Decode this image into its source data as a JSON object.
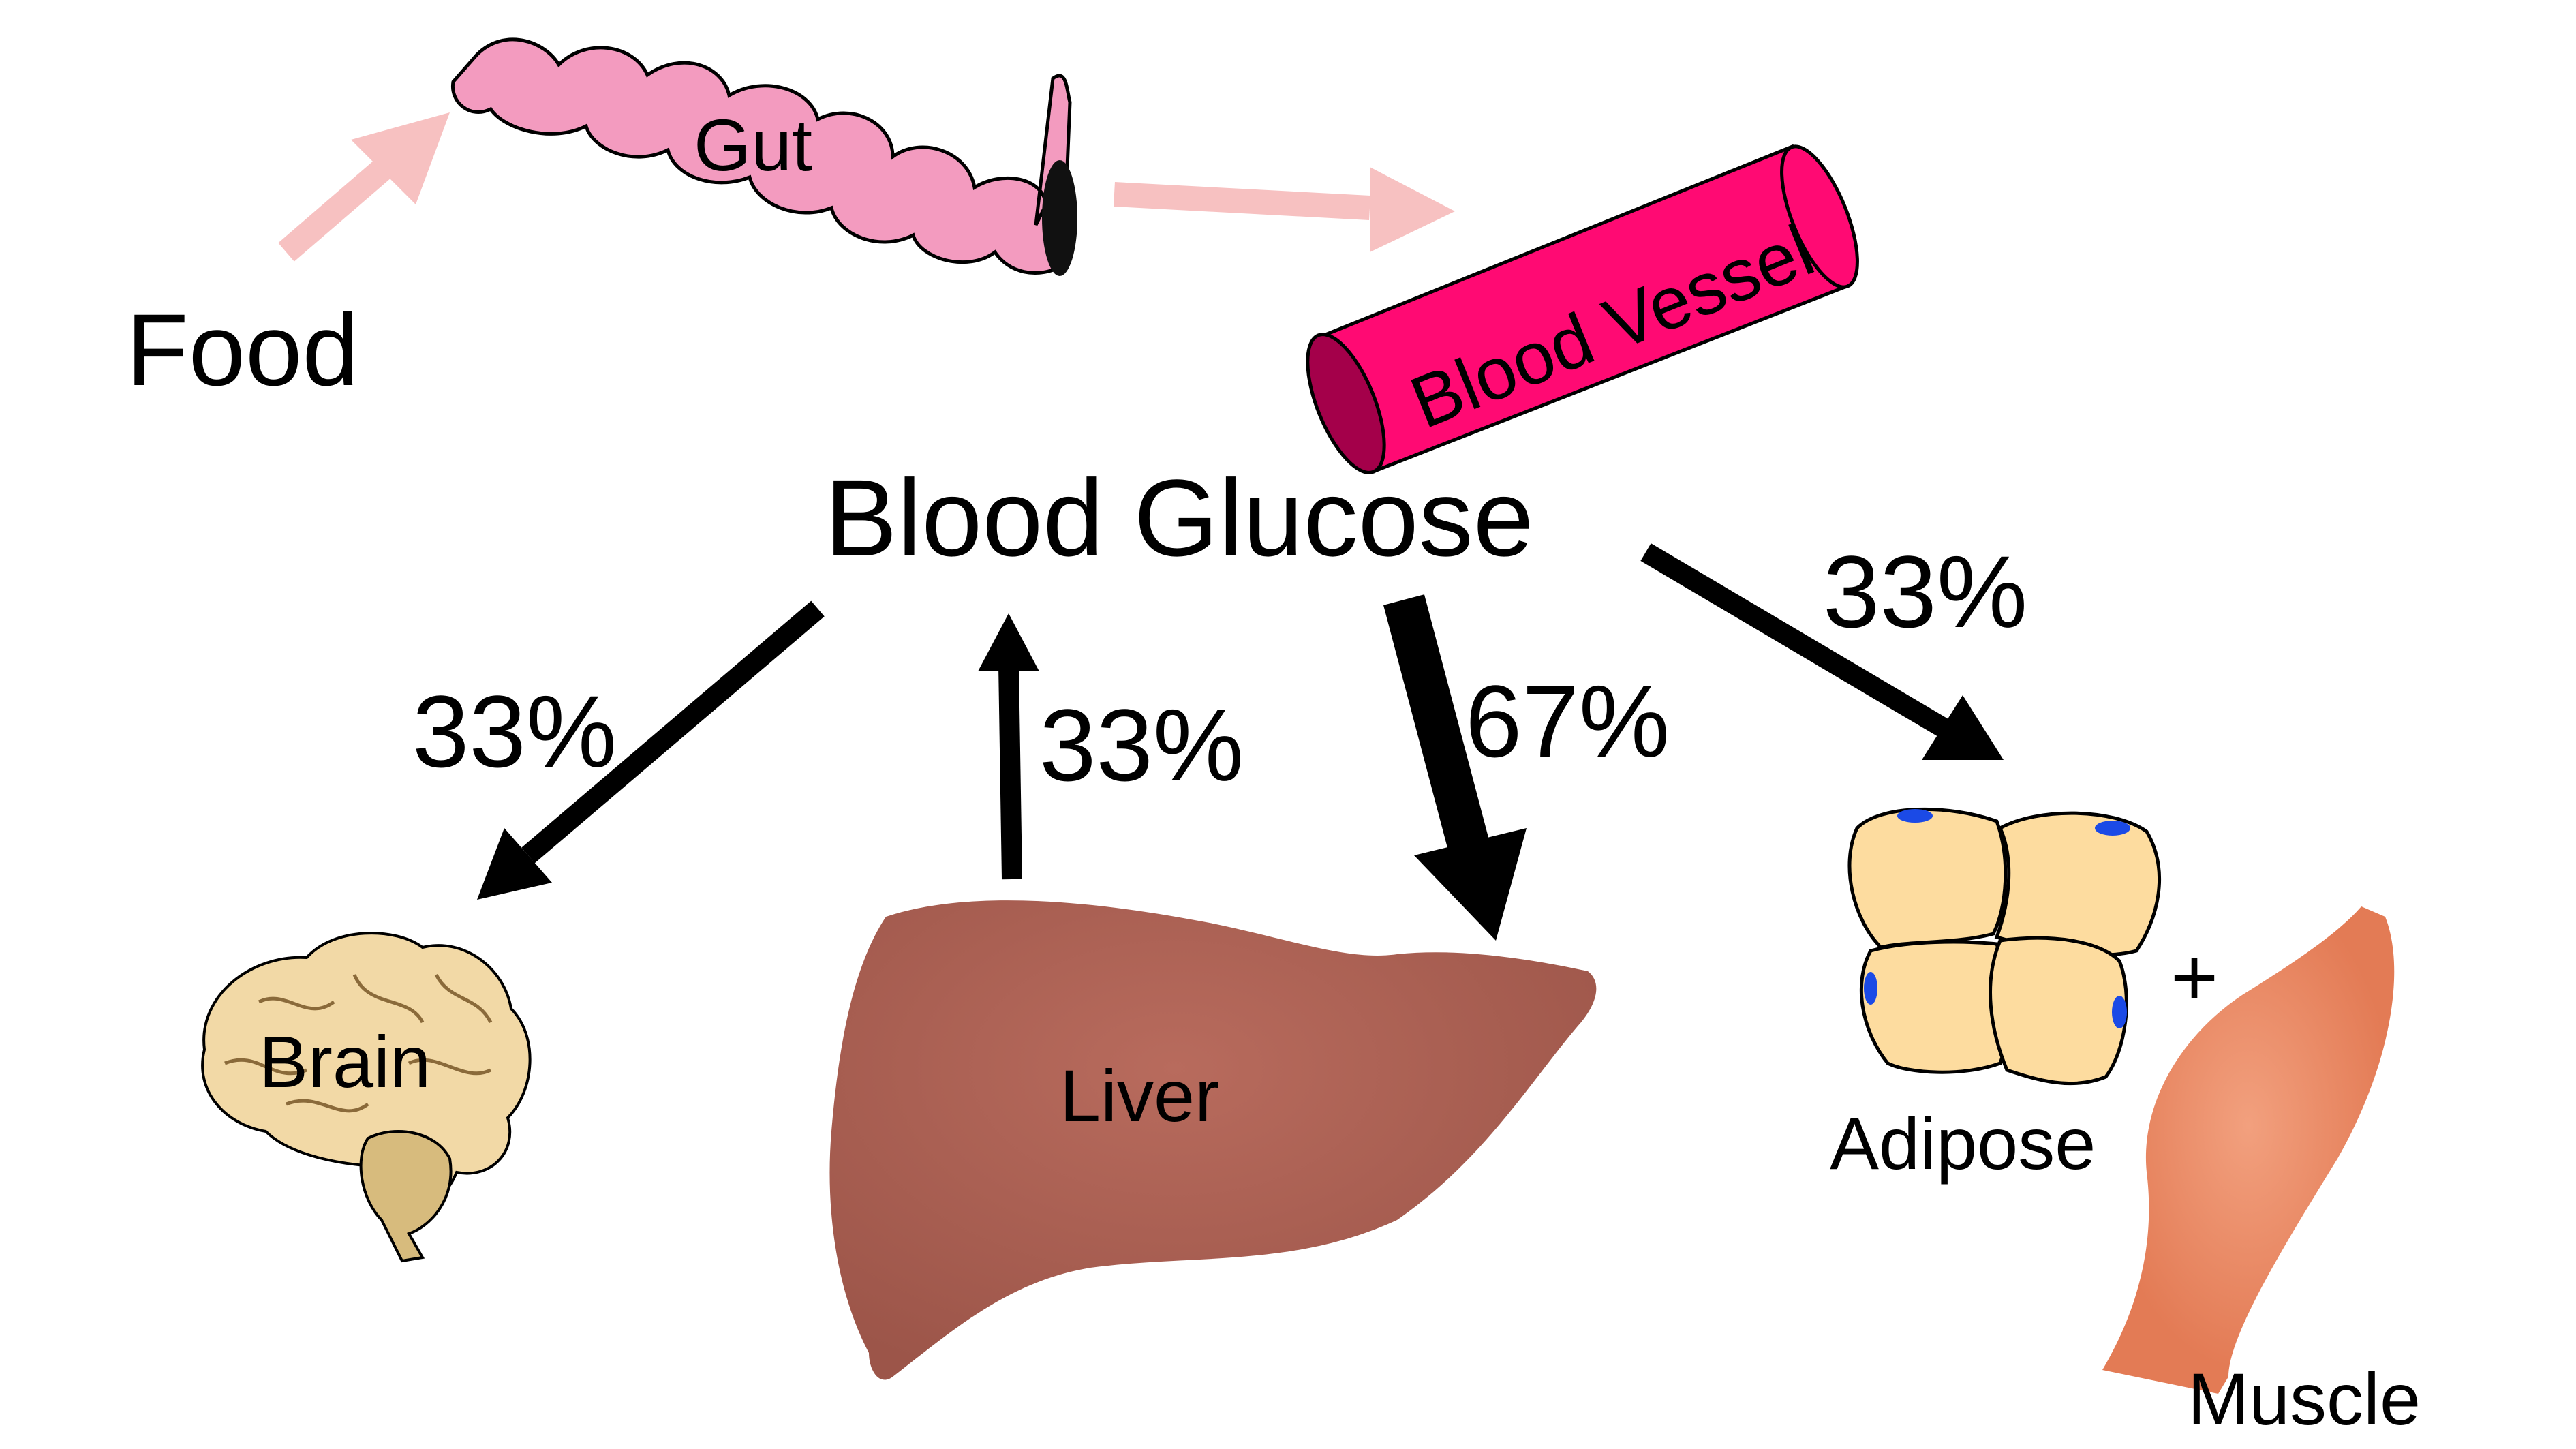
{
  "labels": {
    "food": "Food",
    "gut": "Gut",
    "blood_vessel": "Blood Vessel",
    "blood_glucose": "Blood Glucose",
    "brain": "Brain",
    "liver": "Liver",
    "adipose": "Adipose",
    "muscle": "Muscle",
    "plus": "+"
  },
  "flows": {
    "to_brain": "33%",
    "from_liver": "33%",
    "to_liver": "67%",
    "to_adipose_muscle": "33%"
  },
  "colors": {
    "intake_arrow": "#f7c1c1",
    "gut": "#f39bbf",
    "vessel": "#ff0a73",
    "vessel_opening": "#a4004a",
    "brain": "#f2d9a6",
    "liver": "#a85f52",
    "adipocyte": "#fddc9f",
    "nucleus": "#1b4ae6",
    "muscle": "#e37b55",
    "arrow": "#000000"
  },
  "icons": [
    "gut-icon",
    "blood-vessel-icon",
    "brain-icon",
    "liver-icon",
    "adipose-cells-icon",
    "muscle-icon"
  ]
}
